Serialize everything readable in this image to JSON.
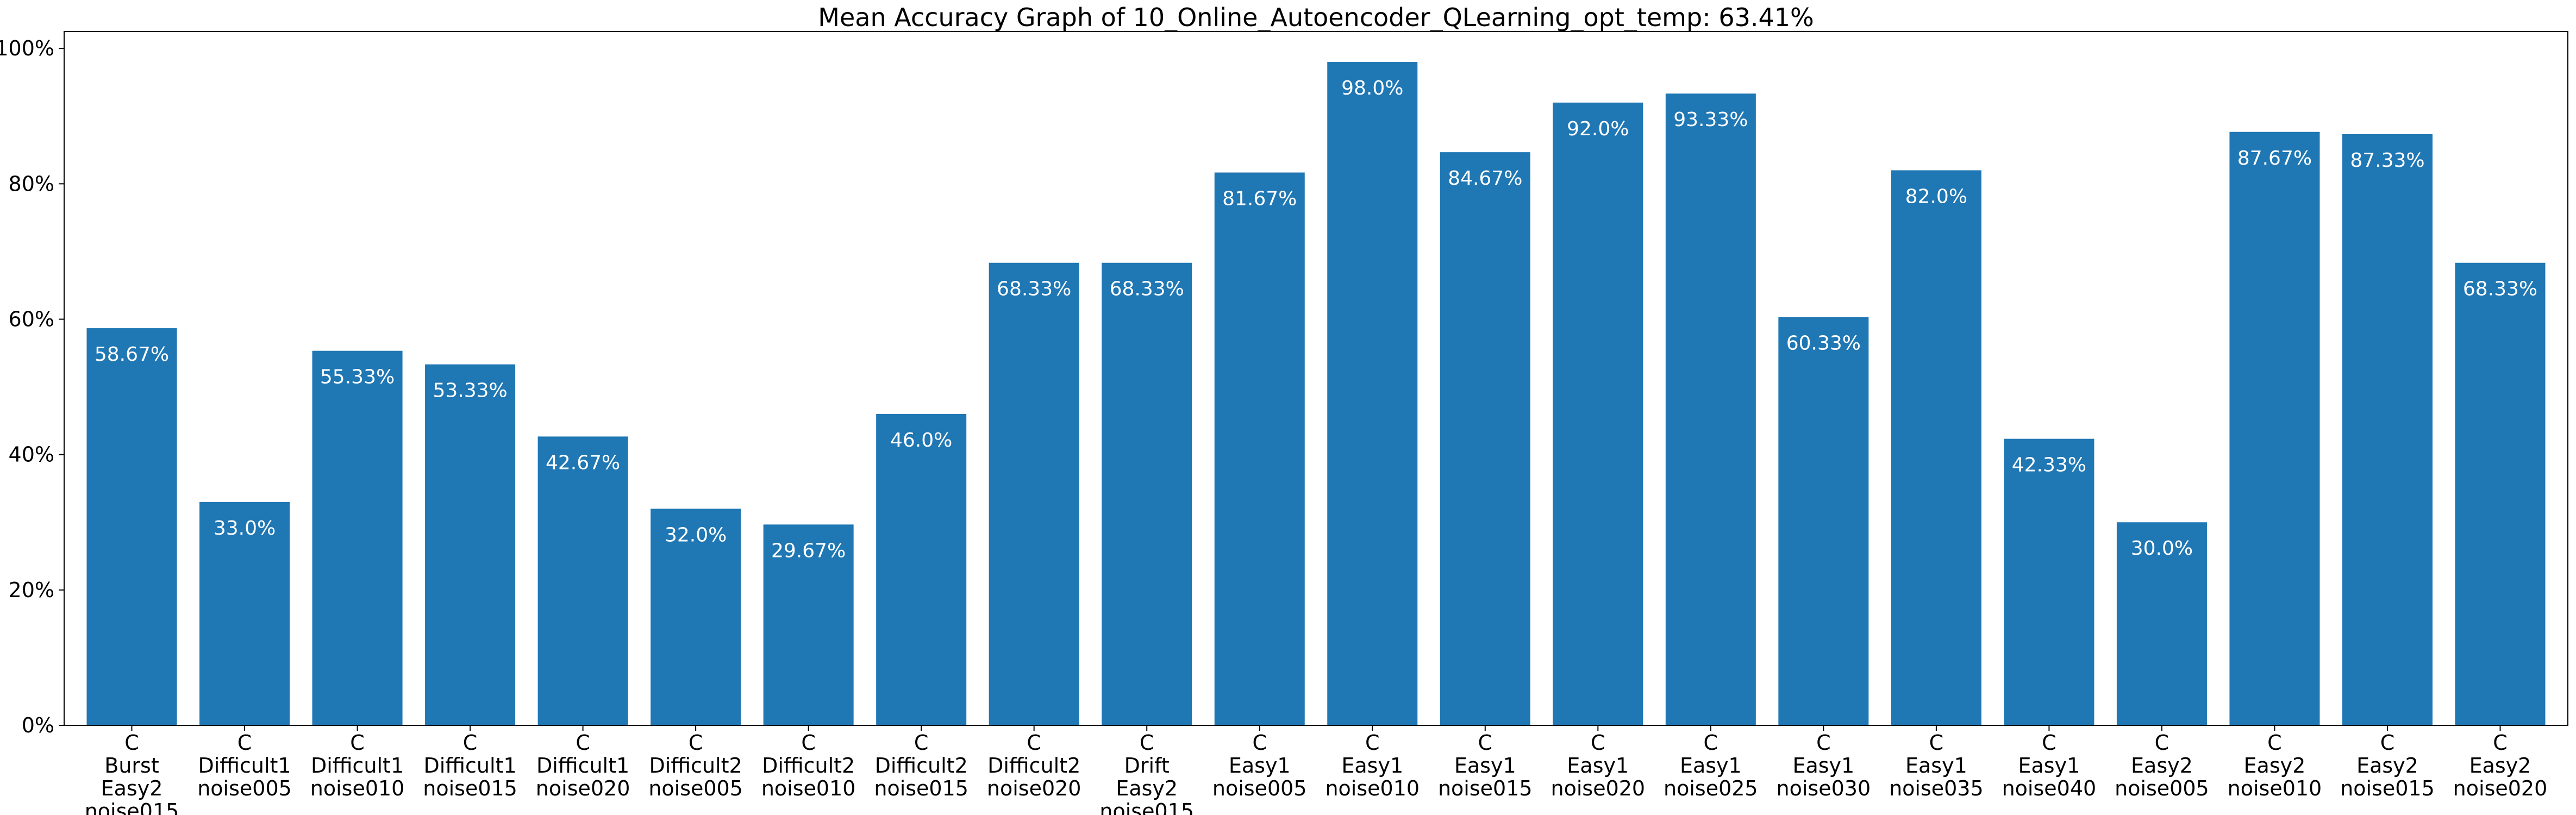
{
  "chart_data": {
    "type": "bar",
    "title": "Mean Accuracy Graph of 10_Online_Autoencoder_QLearning_opt_temp: 63.41%",
    "xlabel": "",
    "ylabel": "",
    "ylim": [
      0,
      102.5
    ],
    "yticks": [
      0,
      20,
      40,
      60,
      80,
      100
    ],
    "ytick_labels": [
      "0%",
      "20%",
      "40%",
      "60%",
      "80%",
      "100%"
    ],
    "grid": false,
    "legend": "none",
    "bar_color": "#1f77b4",
    "data_label_color": "#ffffff",
    "categories": [
      [
        "C",
        "Burst",
        "Easy2",
        "noise015"
      ],
      [
        "C",
        "Difficult1",
        "noise005"
      ],
      [
        "C",
        "Difficult1",
        "noise010"
      ],
      [
        "C",
        "Difficult1",
        "noise015"
      ],
      [
        "C",
        "Difficult1",
        "noise020"
      ],
      [
        "C",
        "Difficult2",
        "noise005"
      ],
      [
        "C",
        "Difficult2",
        "noise010"
      ],
      [
        "C",
        "Difficult2",
        "noise015"
      ],
      [
        "C",
        "Difficult2",
        "noise020"
      ],
      [
        "C",
        "Drift",
        "Easy2",
        "noise015"
      ],
      [
        "C",
        "Easy1",
        "noise005"
      ],
      [
        "C",
        "Easy1",
        "noise010"
      ],
      [
        "C",
        "Easy1",
        "noise015"
      ],
      [
        "C",
        "Easy1",
        "noise020"
      ],
      [
        "C",
        "Easy1",
        "noise025"
      ],
      [
        "C",
        "Easy1",
        "noise030"
      ],
      [
        "C",
        "Easy1",
        "noise035"
      ],
      [
        "C",
        "Easy1",
        "noise040"
      ],
      [
        "C",
        "Easy2",
        "noise005"
      ],
      [
        "C",
        "Easy2",
        "noise010"
      ],
      [
        "C",
        "Easy2",
        "noise015"
      ],
      [
        "C",
        "Easy2",
        "noise020"
      ]
    ],
    "values": [
      58.67,
      33.0,
      55.33,
      53.33,
      42.67,
      32.0,
      29.67,
      46.0,
      68.33,
      68.33,
      81.67,
      98.0,
      84.67,
      92.0,
      93.33,
      60.33,
      82.0,
      42.33,
      30.0,
      87.67,
      87.33,
      68.33
    ],
    "data_labels": [
      "58.67%",
      "33.0%",
      "55.33%",
      "53.33%",
      "42.67%",
      "32.0%",
      "29.67%",
      "46.0%",
      "68.33%",
      "68.33%",
      "81.67%",
      "98.0%",
      "84.67%",
      "92.0%",
      "93.33%",
      "60.33%",
      "82.0%",
      "42.33%",
      "30.0%",
      "87.67%",
      "87.33%",
      "68.33%"
    ]
  }
}
